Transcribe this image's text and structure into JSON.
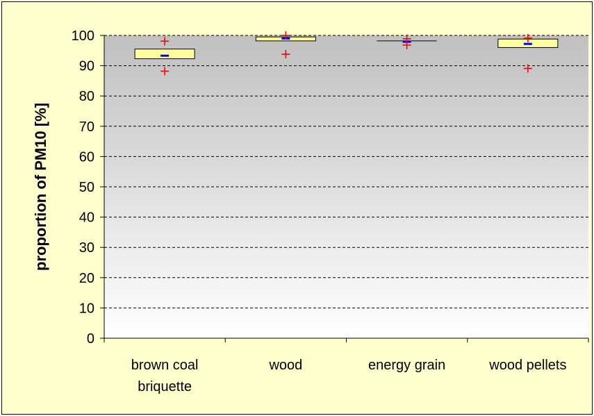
{
  "chart_data": {
    "type": "box",
    "xlabel": "",
    "ylabel": "proportion of PM10 [%]",
    "ylim": [
      0,
      100
    ],
    "yticks": [
      0,
      10,
      20,
      30,
      40,
      50,
      60,
      70,
      80,
      90,
      100
    ],
    "grid": true,
    "categories": [
      {
        "label": [
          "brown coal",
          "briquette"
        ],
        "q1": 92.3,
        "q3": 95.5,
        "mean": 93.3,
        "min": 88.2,
        "max": 98.1
      },
      {
        "label": [
          "wood"
        ],
        "q1": 98.2,
        "q3": 99.5,
        "mean": 99.0,
        "min": 93.8,
        "max": 100.0
      },
      {
        "label": [
          "energy grain"
        ],
        "q1": 98.0,
        "q3": 98.2,
        "mean": 97.9,
        "min": 96.8,
        "max": 98.9
      },
      {
        "label": [
          "wood pellets"
        ],
        "q1": 96.0,
        "q3": 98.8,
        "mean": 97.2,
        "min": 89.1,
        "max": 99.1
      }
    ],
    "colors": {
      "box_fill": "#ffff99",
      "mean_marker": "#0000ff",
      "extreme_marker": "#ff0000",
      "plot_top": "#c0c0c0",
      "plot_bottom": "#ffffff",
      "background": "#ffffcc"
    }
  }
}
